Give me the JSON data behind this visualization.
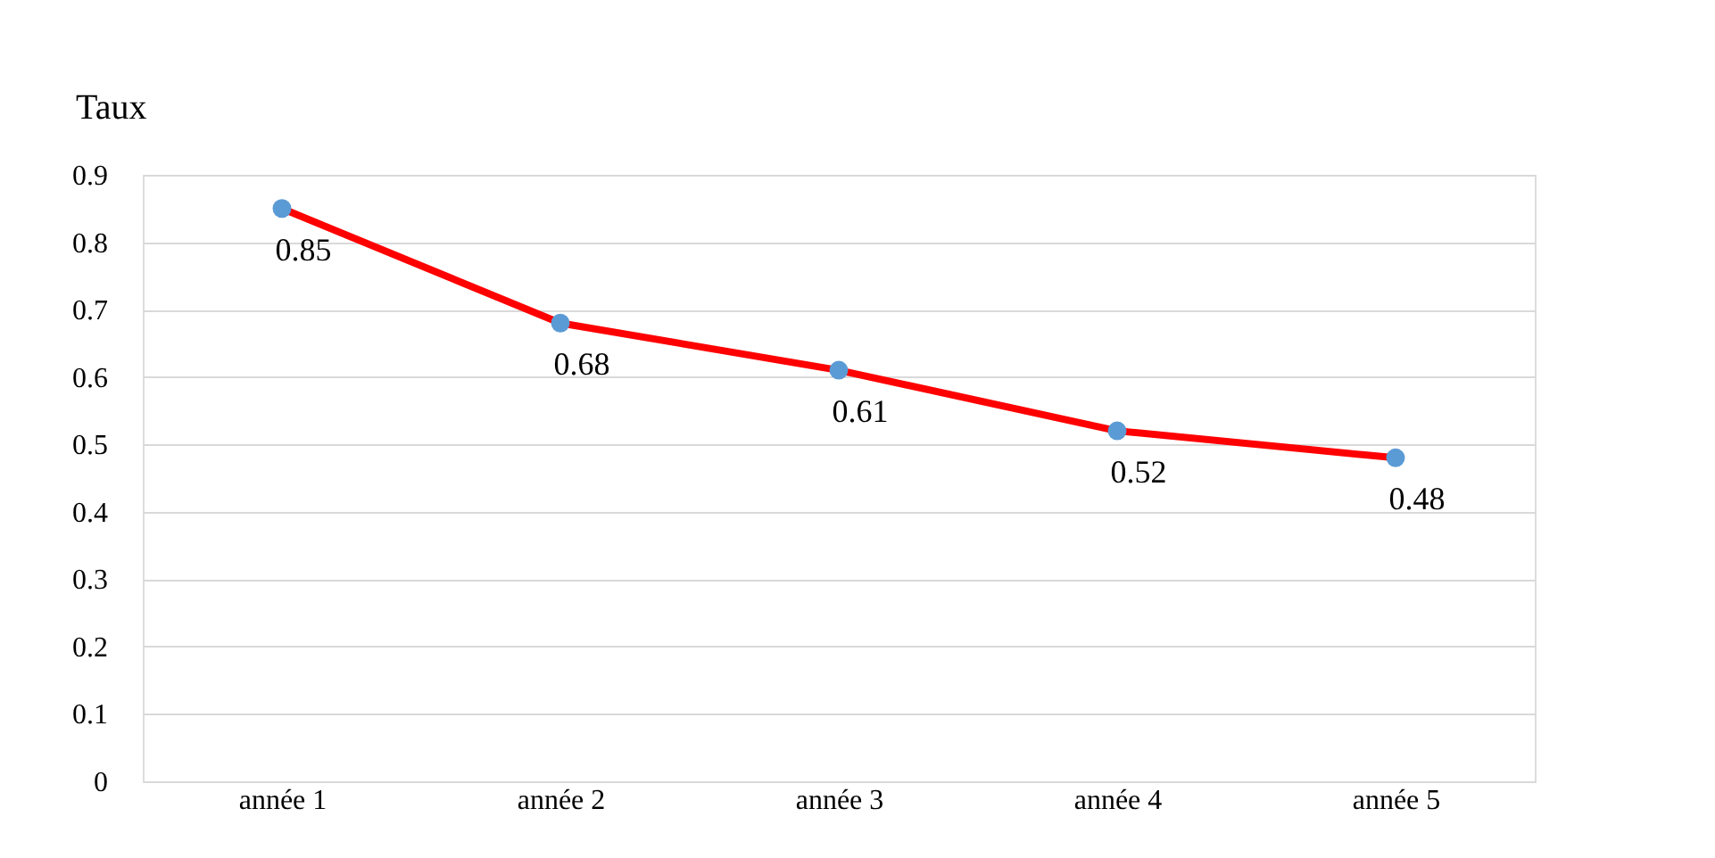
{
  "chart_data": {
    "type": "line",
    "ylabel": "Taux",
    "categories": [
      "année 1",
      "année 2",
      "année 3",
      "année 4",
      "année 5"
    ],
    "series": [
      {
        "color": "#ff0000",
        "values": [
          0.85,
          0.68,
          0.61,
          0.52,
          0.48
        ]
      }
    ],
    "ylim": [
      0,
      0.9
    ],
    "yticks": [
      0,
      0.1,
      0.2,
      0.3,
      0.4,
      0.5,
      0.6,
      0.7,
      0.8,
      0.9
    ],
    "grid": "y",
    "marker": "circle",
    "line_style": "solid",
    "data_labels": true
  }
}
